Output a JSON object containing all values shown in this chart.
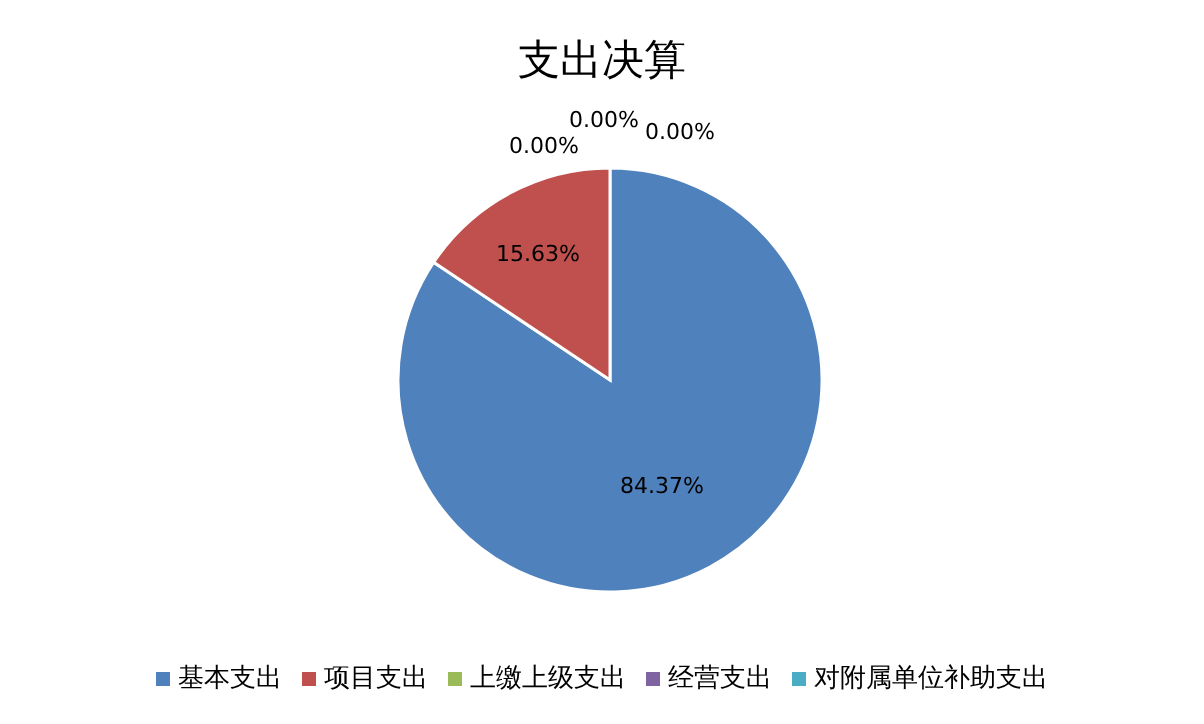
{
  "chart_data": {
    "type": "pie",
    "title": "支出决算",
    "categories": [
      "基本支出",
      "项目支出",
      "上缴上级支出",
      "经营支出",
      "对附属单位补助支出"
    ],
    "values": [
      84.37,
      15.63,
      0,
      0,
      0
    ],
    "value_labels": [
      "84.37%",
      "15.63%",
      "0.00%",
      "0.00%",
      "0.00%"
    ],
    "colors": [
      "#4f81bd",
      "#c0504d",
      "#9bbb59",
      "#8064a2",
      "#4bacc6"
    ],
    "legend": "bottom"
  }
}
